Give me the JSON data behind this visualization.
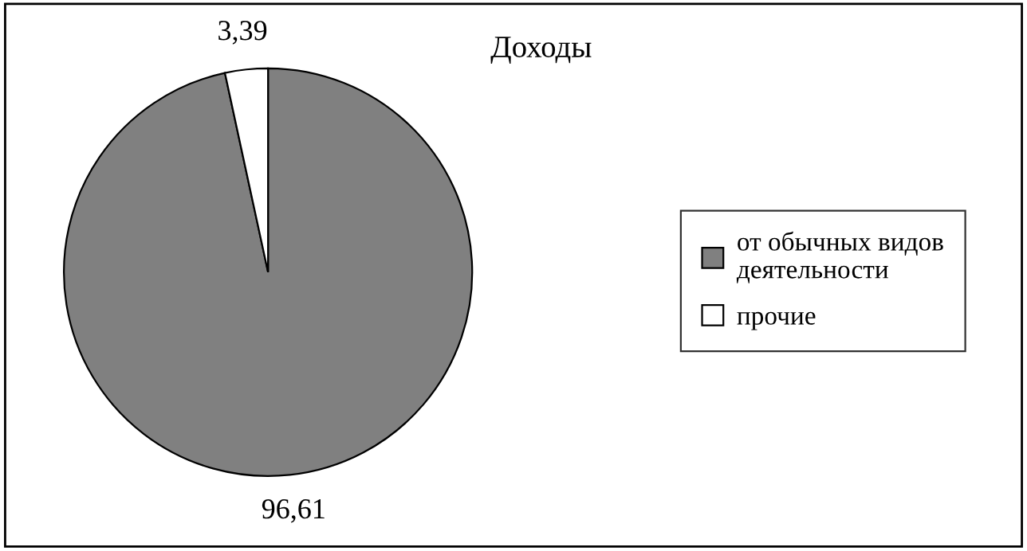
{
  "chart_data": {
    "type": "pie",
    "title": "Доходы",
    "categories": [
      "от обычных видов деятельности",
      "прочие"
    ],
    "values": [
      96.61,
      3.39
    ],
    "value_labels": [
      "96,61",
      "3,39"
    ],
    "colors": [
      "#808080",
      "#ffffff"
    ],
    "legend": "right"
  }
}
